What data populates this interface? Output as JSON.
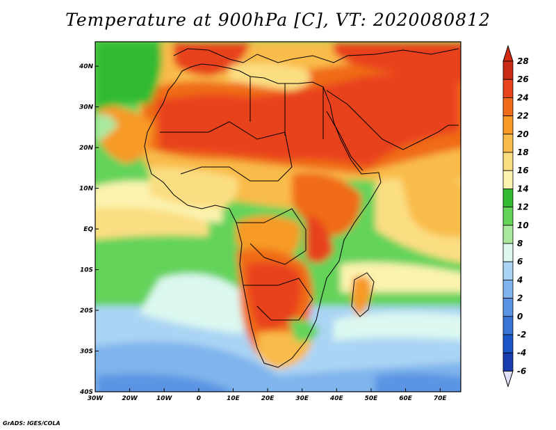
{
  "title": "Temperature at 900hPa [C], VT: 2020080812",
  "credit": "GrADS: IGES/COLA",
  "map": {
    "projection": "lat-lon",
    "lon_range": [
      -30,
      76
    ],
    "lat_range": [
      -40,
      46
    ],
    "lon_ticks": [
      {
        "value": -30,
        "label": "30W"
      },
      {
        "value": -20,
        "label": "20W"
      },
      {
        "value": -10,
        "label": "10W"
      },
      {
        "value": 0,
        "label": "0"
      },
      {
        "value": 10,
        "label": "10E"
      },
      {
        "value": 20,
        "label": "20E"
      },
      {
        "value": 30,
        "label": "30E"
      },
      {
        "value": 40,
        "label": "40E"
      },
      {
        "value": 50,
        "label": "50E"
      },
      {
        "value": 60,
        "label": "60E"
      },
      {
        "value": 70,
        "label": "70E"
      }
    ],
    "lat_ticks": [
      {
        "value": 40,
        "label": "40N"
      },
      {
        "value": 30,
        "label": "30N"
      },
      {
        "value": 20,
        "label": "20N"
      },
      {
        "value": 10,
        "label": "10N"
      },
      {
        "value": 0,
        "label": "EQ"
      },
      {
        "value": -10,
        "label": "10S"
      },
      {
        "value": -20,
        "label": "20S"
      },
      {
        "value": -30,
        "label": "30S"
      },
      {
        "value": -40,
        "label": "40S"
      }
    ]
  },
  "colorbar": {
    "levels": [
      28,
      26,
      24,
      22,
      20,
      18,
      16,
      14,
      12,
      10,
      8,
      6,
      4,
      2,
      0,
      -2,
      -4,
      -6
    ],
    "labels": [
      "28",
      "26",
      "24",
      "22",
      "20",
      "18",
      "16",
      "14",
      "12",
      "10",
      "8",
      "6",
      "4",
      "2",
      "0",
      "-2",
      "-4",
      "-6"
    ],
    "colors": [
      "#c82a14",
      "#e8431a",
      "#f06c18",
      "#f79a26",
      "#f9bb4a",
      "#fbde82",
      "#fbf3b0",
      "#33bb33",
      "#63d35a",
      "#a9e89e",
      "#dcf8f0",
      "#aad4f4",
      "#7fb4ec",
      "#5a94e2",
      "#3675d6",
      "#1a56c8",
      "#1a3ab0",
      "#101880"
    ],
    "overflow_high": "#d2280f",
    "overflow_low": "#e0e0f8"
  }
}
